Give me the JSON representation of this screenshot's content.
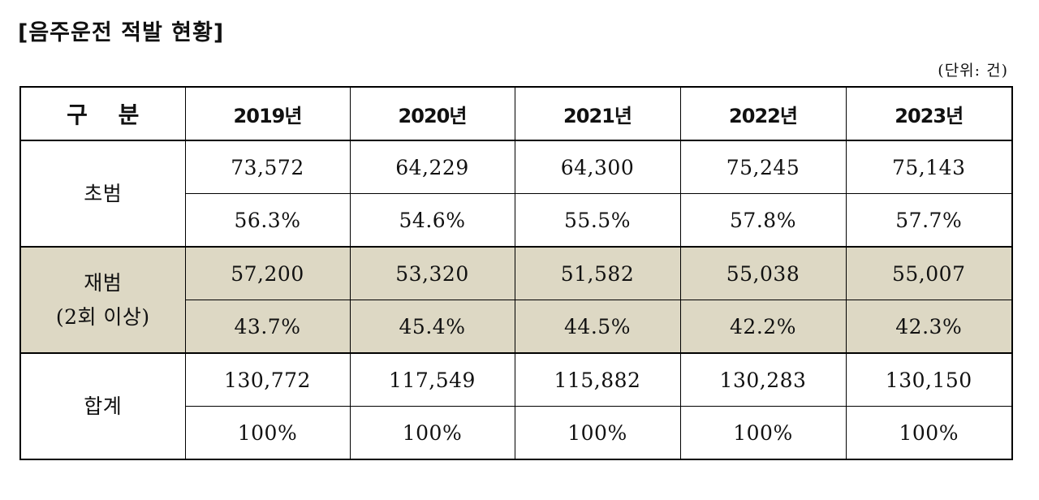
{
  "title": "[음주운전 적발 현황]",
  "unit": "(단위: 건)",
  "table": {
    "header": [
      "구 분",
      "2019년",
      "2020년",
      "2021년",
      "2022년",
      "2023년"
    ],
    "groups": [
      {
        "label_lines": [
          "초범"
        ],
        "shaded": false,
        "rows": [
          [
            "73,572",
            "64,229",
            "64,300",
            "75,245",
            "75,143"
          ],
          [
            "56.3%",
            "54.6%",
            "55.5%",
            "57.8%",
            "57.7%"
          ]
        ]
      },
      {
        "label_lines": [
          "재범",
          "(2회 이상)"
        ],
        "shaded": true,
        "rows": [
          [
            "57,200",
            "53,320",
            "51,582",
            "55,038",
            "55,007"
          ],
          [
            "43.7%",
            "45.4%",
            "44.5%",
            "42.2%",
            "42.3%"
          ]
        ]
      },
      {
        "label_lines": [
          "합계"
        ],
        "shaded": false,
        "rows": [
          [
            "130,772",
            "117,549",
            "115,882",
            "130,283",
            "130,150"
          ],
          [
            "100%",
            "100%",
            "100%",
            "100%",
            "100%"
          ]
        ]
      }
    ]
  }
}
